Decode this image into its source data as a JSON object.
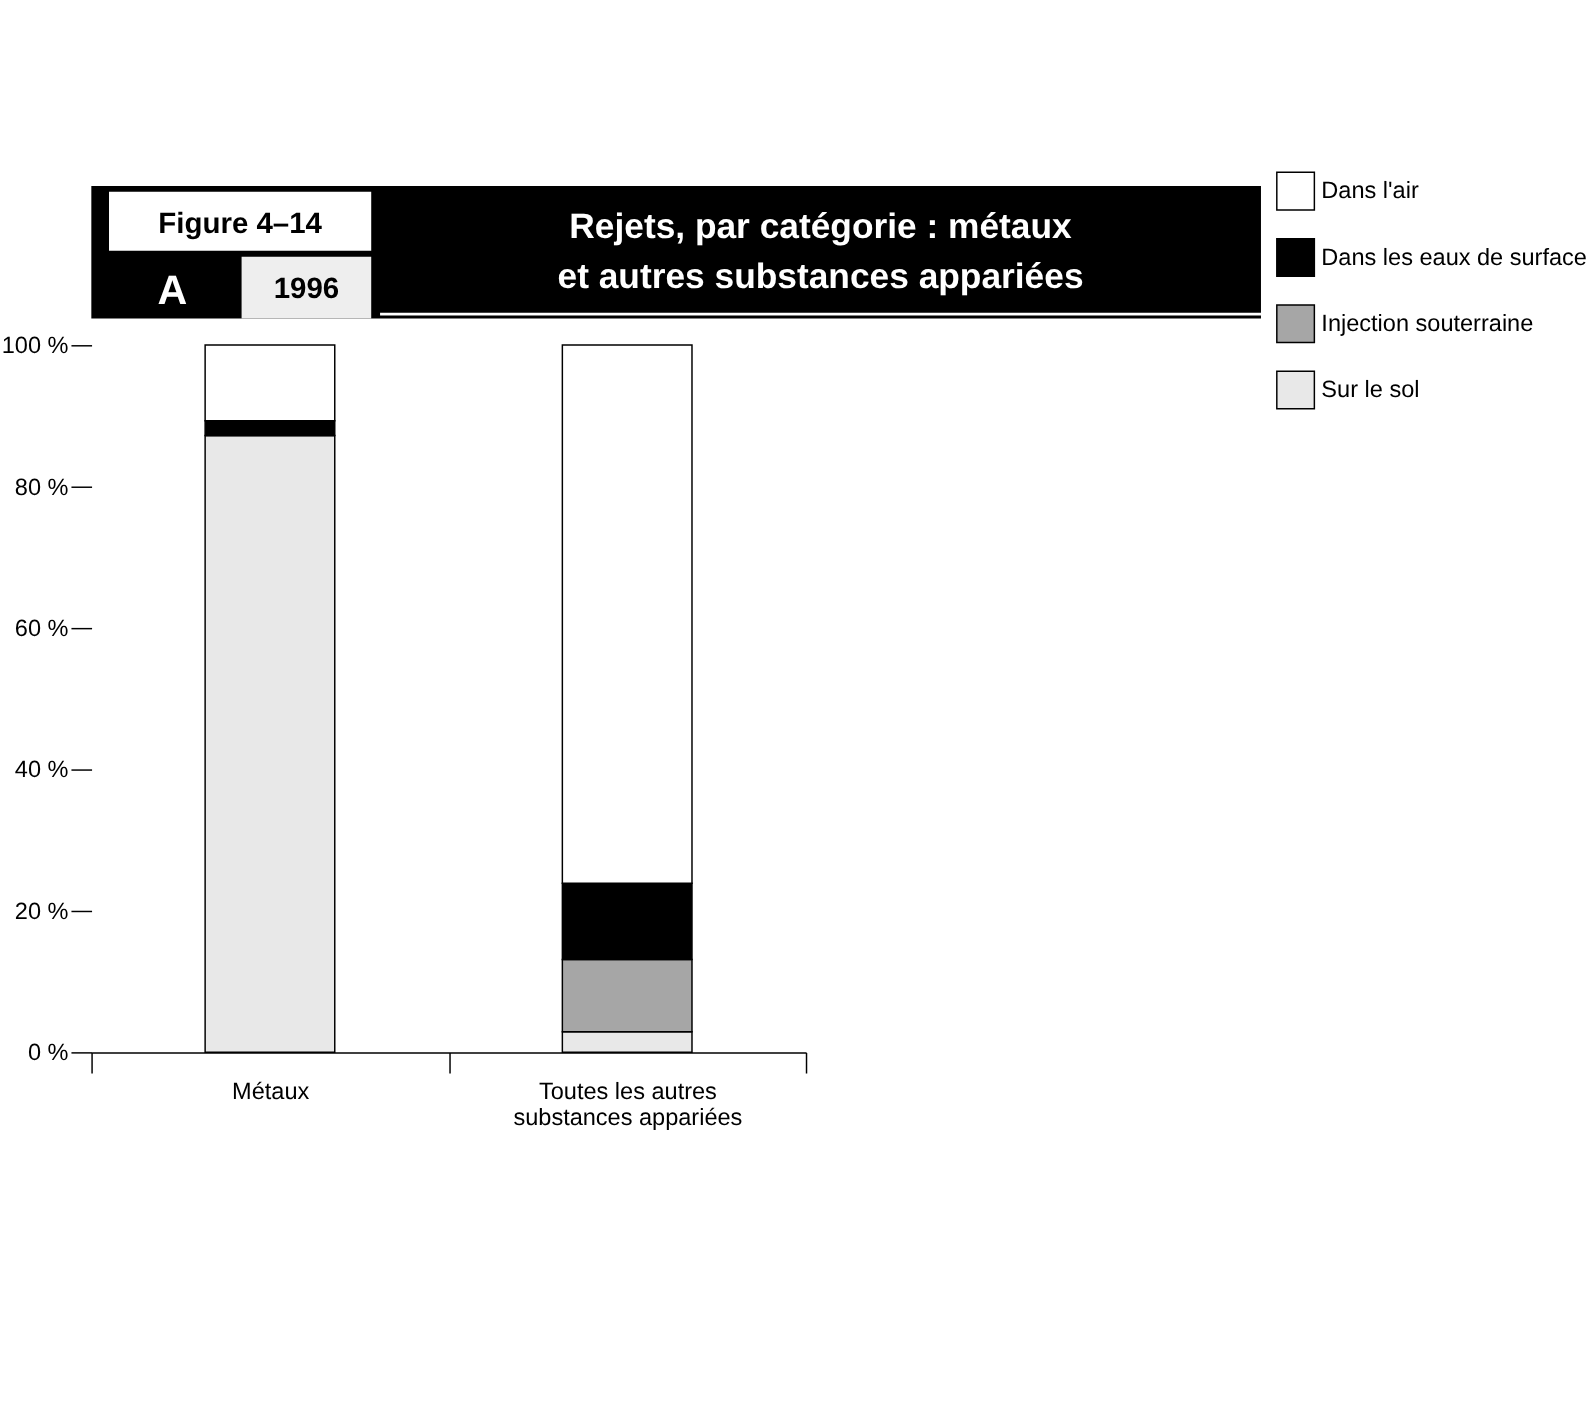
{
  "chart_data": {
    "type": "bar",
    "stacked": true,
    "title": [
      "Rejets, par catégorie : métaux",
      "et autres substances appariées"
    ],
    "annotations": [
      "Figure 4–14",
      "A",
      "1996"
    ],
    "categories": [
      "Métaux",
      "Toutes les autres substances appariées"
    ],
    "series": [
      {
        "name": "Sur le sol",
        "color": "#e8e8e8",
        "values": [
          87.2,
          2.9
        ]
      },
      {
        "name": "Injection souterraine",
        "color": "#a6a6a6",
        "values": [
          0,
          10.2
        ]
      },
      {
        "name": "Dans les eaux de surface",
        "color": "#000000",
        "values": [
          2.1,
          10.8
        ]
      },
      {
        "name": "Dans l'air",
        "color": "#ffffff",
        "values": [
          10.7,
          76.1
        ]
      }
    ],
    "ylim": [
      0,
      100
    ],
    "yticks": [
      {
        "value": 0,
        "label": "0 %"
      },
      {
        "value": 20,
        "label": "20 %"
      },
      {
        "value": 40,
        "label": "40 %"
      },
      {
        "value": 60,
        "label": "60 %"
      },
      {
        "value": 80,
        "label": "80 %"
      },
      {
        "value": 100,
        "label": "100 %"
      }
    ],
    "grid": false,
    "legend": "top right"
  }
}
